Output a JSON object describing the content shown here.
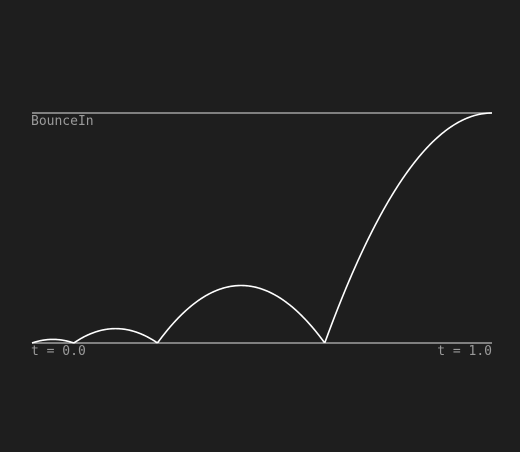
{
  "curve": {
    "name": "BounceIn",
    "start_label": "t = 0.0",
    "end_label": "t = 1.0",
    "easing": "bounce-in",
    "t_range": [
      0,
      1
    ],
    "value_range": [
      0,
      1
    ]
  },
  "colors": {
    "background": "#1e1e1e",
    "reference_lines": "#a0a0a0",
    "curve": "#ffffff",
    "labels": "#9a9a9a"
  }
}
